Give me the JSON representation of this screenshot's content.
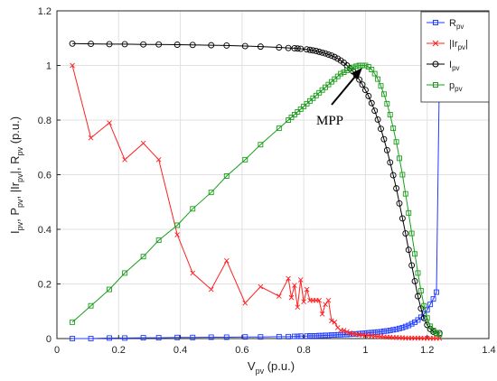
{
  "chart_data": {
    "type": "line",
    "xlabel": "V_pv (p.u.)",
    "ylabel": "I_pv, P_pv, |Ir_pv|, R_pv (p.u.)",
    "xlim": [
      0,
      1.4
    ],
    "ylim": [
      0,
      1.2
    ],
    "xticks": [
      "0",
      "0.2",
      "0.4",
      "0.6",
      "0.8",
      "1",
      "1.2",
      "1.4"
    ],
    "yticks": [
      "0",
      "0.2",
      "0.4",
      "0.6",
      "0.8",
      "1",
      "1.2"
    ],
    "grid": true,
    "legend_position": "top-right",
    "annotation": {
      "text": "MPP",
      "points_to": [
        1.0,
        1.0
      ]
    },
    "series": [
      {
        "name": "R_pv",
        "color": "#1f3bff",
        "marker": "square",
        "points": [
          [
            0.05,
            0.0
          ],
          [
            0.11,
            0.0
          ],
          [
            0.17,
            0.002
          ],
          [
            0.22,
            0.002
          ],
          [
            0.28,
            0.003
          ],
          [
            0.33,
            0.003
          ],
          [
            0.39,
            0.004
          ],
          [
            0.44,
            0.004
          ],
          [
            0.5,
            0.005
          ],
          [
            0.55,
            0.005
          ],
          [
            0.61,
            0.006
          ],
          [
            0.66,
            0.006
          ],
          [
            0.72,
            0.007
          ],
          [
            0.75,
            0.007
          ],
          [
            0.77,
            0.008
          ],
          [
            0.78,
            0.008
          ],
          [
            0.79,
            0.009
          ],
          [
            0.81,
            0.009
          ],
          [
            0.82,
            0.01
          ],
          [
            0.83,
            0.01
          ],
          [
            0.84,
            0.01
          ],
          [
            0.85,
            0.011
          ],
          [
            0.86,
            0.011
          ],
          [
            0.87,
            0.012
          ],
          [
            0.88,
            0.012
          ],
          [
            0.89,
            0.013
          ],
          [
            0.9,
            0.013
          ],
          [
            0.91,
            0.014
          ],
          [
            0.92,
            0.014
          ],
          [
            0.93,
            0.015
          ],
          [
            0.94,
            0.015
          ],
          [
            0.95,
            0.016
          ],
          [
            0.96,
            0.017
          ],
          [
            0.97,
            0.017
          ],
          [
            0.98,
            0.018
          ],
          [
            0.99,
            0.019
          ],
          [
            1.0,
            0.02
          ],
          [
            1.01,
            0.021
          ],
          [
            1.02,
            0.022
          ],
          [
            1.03,
            0.023
          ],
          [
            1.04,
            0.024
          ],
          [
            1.05,
            0.025
          ],
          [
            1.06,
            0.027
          ],
          [
            1.07,
            0.028
          ],
          [
            1.08,
            0.03
          ],
          [
            1.09,
            0.032
          ],
          [
            1.1,
            0.034
          ],
          [
            1.11,
            0.037
          ],
          [
            1.12,
            0.04
          ],
          [
            1.13,
            0.044
          ],
          [
            1.14,
            0.048
          ],
          [
            1.15,
            0.054
          ],
          [
            1.16,
            0.06
          ],
          [
            1.17,
            0.068
          ],
          [
            1.18,
            0.078
          ],
          [
            1.19,
            0.09
          ],
          [
            1.2,
            0.105
          ],
          [
            1.21,
            0.125
          ],
          [
            1.22,
            0.145
          ],
          [
            1.23,
            0.17
          ],
          [
            1.24,
            1.0
          ]
        ]
      },
      {
        "name": "|Ir_pv|",
        "color": "#ff2020",
        "marker": "x",
        "points": [
          [
            0.05,
            1.0
          ],
          [
            0.11,
            0.735
          ],
          [
            0.17,
            0.79
          ],
          [
            0.22,
            0.655
          ],
          [
            0.28,
            0.715
          ],
          [
            0.33,
            0.655
          ],
          [
            0.39,
            0.38
          ],
          [
            0.44,
            0.24
          ],
          [
            0.5,
            0.18
          ],
          [
            0.55,
            0.285
          ],
          [
            0.61,
            0.13
          ],
          [
            0.66,
            0.19
          ],
          [
            0.72,
            0.155
          ],
          [
            0.75,
            0.22
          ],
          [
            0.76,
            0.15
          ],
          [
            0.77,
            0.195
          ],
          [
            0.78,
            0.115
          ],
          [
            0.79,
            0.215
          ],
          [
            0.8,
            0.135
          ],
          [
            0.81,
            0.18
          ],
          [
            0.82,
            0.14
          ],
          [
            0.83,
            0.14
          ],
          [
            0.84,
            0.14
          ],
          [
            0.85,
            0.14
          ],
          [
            0.86,
            0.09
          ],
          [
            0.87,
            0.125
          ],
          [
            0.88,
            0.14
          ],
          [
            0.89,
            0.065
          ],
          [
            0.9,
            0.06
          ],
          [
            0.91,
            0.04
          ],
          [
            0.92,
            0.03
          ],
          [
            0.93,
            0.03
          ],
          [
            0.94,
            0.025
          ],
          [
            0.95,
            0.02
          ],
          [
            0.96,
            0.018
          ],
          [
            0.97,
            0.016
          ],
          [
            0.98,
            0.014
          ],
          [
            0.99,
            0.013
          ],
          [
            1.0,
            0.012
          ],
          [
            1.01,
            0.011
          ],
          [
            1.02,
            0.01
          ],
          [
            1.03,
            0.009
          ],
          [
            1.04,
            0.008
          ],
          [
            1.05,
            0.007
          ],
          [
            1.06,
            0.006
          ],
          [
            1.07,
            0.005
          ],
          [
            1.08,
            0.005
          ],
          [
            1.09,
            0.004
          ],
          [
            1.1,
            0.004
          ],
          [
            1.11,
            0.003
          ],
          [
            1.12,
            0.003
          ],
          [
            1.13,
            0.002
          ],
          [
            1.14,
            0.002
          ],
          [
            1.15,
            0.002
          ],
          [
            1.16,
            0.002
          ],
          [
            1.17,
            0.002
          ],
          [
            1.18,
            0.002
          ],
          [
            1.19,
            0.001
          ],
          [
            1.2,
            0.001
          ],
          [
            1.21,
            0.001
          ],
          [
            1.22,
            0.001
          ],
          [
            1.23,
            0.001
          ],
          [
            1.24,
            0.001
          ]
        ]
      },
      {
        "name": "I_pv",
        "color": "#000000",
        "marker": "circle",
        "points": [
          [
            0.05,
            1.08
          ],
          [
            0.11,
            1.079
          ],
          [
            0.17,
            1.078
          ],
          [
            0.22,
            1.078
          ],
          [
            0.28,
            1.077
          ],
          [
            0.33,
            1.077
          ],
          [
            0.39,
            1.076
          ],
          [
            0.44,
            1.075
          ],
          [
            0.5,
            1.074
          ],
          [
            0.55,
            1.073
          ],
          [
            0.61,
            1.071
          ],
          [
            0.66,
            1.069
          ],
          [
            0.72,
            1.066
          ],
          [
            0.75,
            1.064
          ],
          [
            0.77,
            1.063
          ],
          [
            0.78,
            1.062
          ],
          [
            0.79,
            1.061
          ],
          [
            0.81,
            1.059
          ],
          [
            0.82,
            1.057
          ],
          [
            0.83,
            1.055
          ],
          [
            0.84,
            1.053
          ],
          [
            0.85,
            1.05
          ],
          [
            0.86,
            1.047
          ],
          [
            0.87,
            1.044
          ],
          [
            0.88,
            1.04
          ],
          [
            0.89,
            1.036
          ],
          [
            0.9,
            1.031
          ],
          [
            0.91,
            1.025
          ],
          [
            0.92,
            1.018
          ],
          [
            0.93,
            1.01
          ],
          [
            0.94,
            1.0
          ],
          [
            0.95,
            0.99
          ],
          [
            0.96,
            0.978
          ],
          [
            0.97,
            0.964
          ],
          [
            0.98,
            0.948
          ],
          [
            0.99,
            0.93
          ],
          [
            1.0,
            0.91
          ],
          [
            1.01,
            0.888
          ],
          [
            1.02,
            0.862
          ],
          [
            1.03,
            0.834
          ],
          [
            1.04,
            0.802
          ],
          [
            1.05,
            0.768
          ],
          [
            1.06,
            0.73
          ],
          [
            1.07,
            0.69
          ],
          [
            1.08,
            0.645
          ],
          [
            1.09,
            0.598
          ],
          [
            1.1,
            0.55
          ],
          [
            1.11,
            0.495
          ],
          [
            1.12,
            0.44
          ],
          [
            1.13,
            0.385
          ],
          [
            1.14,
            0.325
          ],
          [
            1.15,
            0.268
          ],
          [
            1.16,
            0.21
          ],
          [
            1.17,
            0.155
          ],
          [
            1.18,
            0.11
          ],
          [
            1.19,
            0.075
          ],
          [
            1.2,
            0.05
          ],
          [
            1.21,
            0.035
          ],
          [
            1.22,
            0.025
          ],
          [
            1.23,
            0.02
          ],
          [
            1.24,
            0.02
          ]
        ]
      },
      {
        "name": "P_pv",
        "color": "#1a9e1a",
        "marker": "square",
        "points": [
          [
            0.05,
            0.06
          ],
          [
            0.11,
            0.12
          ],
          [
            0.17,
            0.18
          ],
          [
            0.22,
            0.24
          ],
          [
            0.28,
            0.3
          ],
          [
            0.33,
            0.36
          ],
          [
            0.39,
            0.415
          ],
          [
            0.44,
            0.475
          ],
          [
            0.5,
            0.535
          ],
          [
            0.55,
            0.595
          ],
          [
            0.61,
            0.655
          ],
          [
            0.66,
            0.71
          ],
          [
            0.72,
            0.77
          ],
          [
            0.75,
            0.8
          ],
          [
            0.76,
            0.81
          ],
          [
            0.77,
            0.82
          ],
          [
            0.78,
            0.83
          ],
          [
            0.79,
            0.84
          ],
          [
            0.8,
            0.85
          ],
          [
            0.81,
            0.86
          ],
          [
            0.82,
            0.87
          ],
          [
            0.83,
            0.88
          ],
          [
            0.84,
            0.89
          ],
          [
            0.85,
            0.9
          ],
          [
            0.86,
            0.91
          ],
          [
            0.87,
            0.92
          ],
          [
            0.88,
            0.93
          ],
          [
            0.89,
            0.94
          ],
          [
            0.9,
            0.95
          ],
          [
            0.91,
            0.96
          ],
          [
            0.92,
            0.97
          ],
          [
            0.93,
            0.975
          ],
          [
            0.94,
            0.982
          ],
          [
            0.95,
            0.988
          ],
          [
            0.96,
            0.993
          ],
          [
            0.97,
            0.997
          ],
          [
            0.98,
            1.0
          ],
          [
            0.99,
            1.0
          ],
          [
            1.0,
            1.0
          ],
          [
            1.01,
            0.995
          ],
          [
            1.02,
            0.985
          ],
          [
            1.03,
            0.97
          ],
          [
            1.04,
            0.95
          ],
          [
            1.05,
            0.925
          ],
          [
            1.06,
            0.895
          ],
          [
            1.07,
            0.86
          ],
          [
            1.08,
            0.82
          ],
          [
            1.09,
            0.77
          ],
          [
            1.1,
            0.72
          ],
          [
            1.11,
            0.66
          ],
          [
            1.12,
            0.6
          ],
          [
            1.13,
            0.53
          ],
          [
            1.14,
            0.46
          ],
          [
            1.15,
            0.385
          ],
          [
            1.16,
            0.31
          ],
          [
            1.17,
            0.24
          ],
          [
            1.18,
            0.175
          ],
          [
            1.19,
            0.12
          ],
          [
            1.2,
            0.075
          ],
          [
            1.21,
            0.045
          ],
          [
            1.22,
            0.03
          ],
          [
            1.23,
            0.02
          ],
          [
            1.24,
            0.015
          ]
        ]
      }
    ]
  }
}
